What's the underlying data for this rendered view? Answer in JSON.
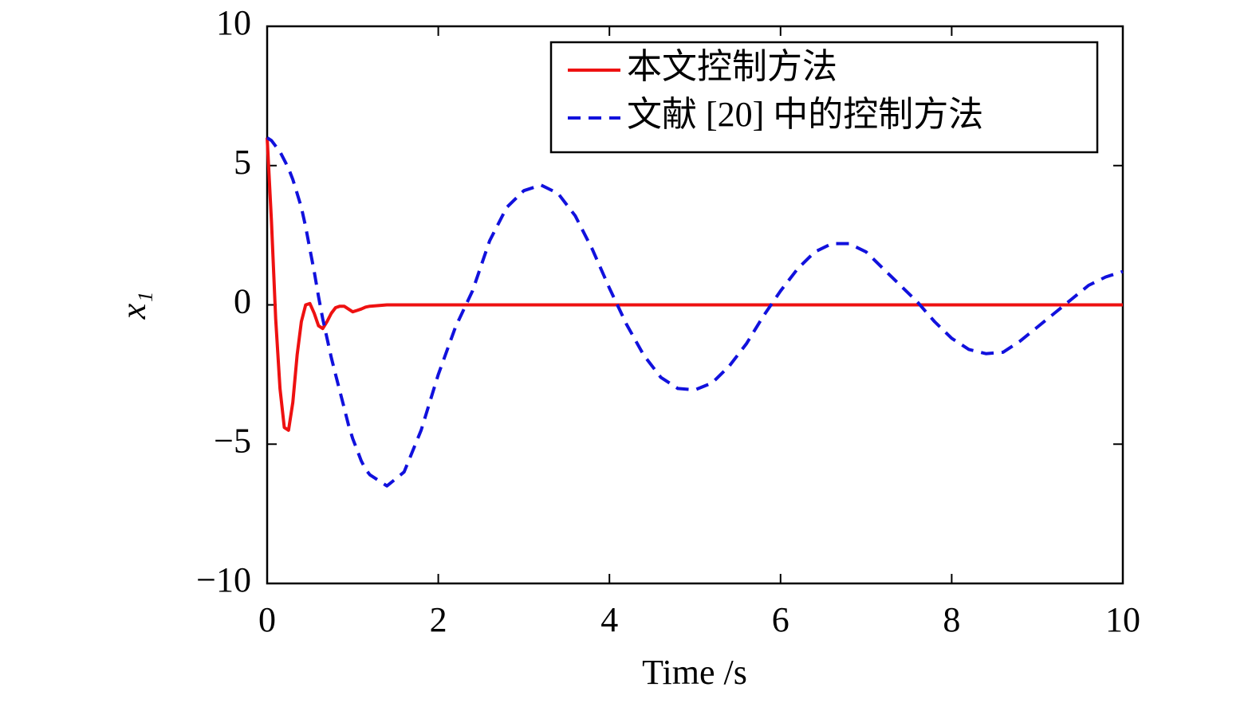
{
  "chart_data": {
    "type": "line",
    "x": [
      0,
      0.05,
      0.1,
      0.15,
      0.2,
      0.25,
      0.3,
      0.35,
      0.4,
      0.45,
      0.5,
      0.55,
      0.6,
      0.65,
      0.7,
      0.75,
      0.8,
      0.85,
      0.9,
      0.95,
      1.0,
      1.05,
      1.1,
      1.15,
      1.2,
      1.4,
      1.6,
      1.8,
      2.0,
      2.2,
      2.4,
      2.6,
      2.8,
      3.0,
      3.2,
      3.4,
      3.6,
      3.8,
      4.0,
      4.2,
      4.4,
      4.6,
      4.8,
      5.0,
      5.2,
      5.4,
      5.6,
      5.8,
      6.0,
      6.2,
      6.4,
      6.6,
      6.8,
      7.0,
      7.2,
      7.4,
      7.6,
      7.8,
      8.0,
      8.2,
      8.4,
      8.6,
      8.8,
      9.0,
      9.2,
      9.4,
      9.6,
      9.8,
      10
    ],
    "series": [
      {
        "name": "本文控制方法",
        "color": "#ee1111",
        "dash": false,
        "values": [
          6,
          3,
          -0.5,
          -3,
          -4.4,
          -4.5,
          -3.5,
          -1.8,
          -0.6,
          0,
          0.05,
          -0.3,
          -0.75,
          -0.85,
          -0.6,
          -0.3,
          -0.1,
          -0.05,
          -0.05,
          -0.15,
          -0.25,
          -0.2,
          -0.15,
          -0.08,
          -0.05,
          0,
          0,
          0,
          0,
          0,
          0,
          0,
          0,
          0,
          0,
          0,
          0,
          0,
          0,
          0,
          0,
          0,
          0,
          0,
          0,
          0,
          0,
          0,
          0,
          0,
          0,
          0,
          0,
          0,
          0,
          0,
          0,
          0,
          0,
          0,
          0,
          0,
          0,
          0,
          0,
          0,
          0,
          0,
          0
        ]
      },
      {
        "name": "文献 [20] 中的控制方法",
        "color": "#1111dd",
        "dash": true,
        "values": [
          6,
          5.9,
          5.7,
          5.5,
          5.2,
          4.9,
          4.5,
          4.0,
          3.5,
          2.8,
          2.0,
          1.2,
          0.3,
          -0.5,
          -1.2,
          -1.9,
          -2.5,
          -3.1,
          -3.7,
          -4.3,
          -4.8,
          -5.2,
          -5.6,
          -5.9,
          -6.1,
          -6.5,
          -6.0,
          -4.5,
          -2.5,
          -0.8,
          0.5,
          2.3,
          3.5,
          4.1,
          4.3,
          4.0,
          3.2,
          2.0,
          0.6,
          -0.7,
          -1.8,
          -2.6,
          -3.0,
          -3.05,
          -2.8,
          -2.2,
          -1.4,
          -0.4,
          0.5,
          1.3,
          1.9,
          2.2,
          2.2,
          1.9,
          1.3,
          0.7,
          0.1,
          -0.6,
          -1.2,
          -1.6,
          -1.75,
          -1.7,
          -1.3,
          -0.8,
          -0.3,
          0.2,
          0.7,
          1.0,
          1.2
        ]
      }
    ],
    "x_label": "Time /s",
    "y_label": "x₁",
    "xlim": [
      0,
      10
    ],
    "xticks": [
      0,
      2,
      4,
      6,
      8,
      10
    ],
    "ylim": [
      -10,
      10
    ],
    "yticks": [
      {
        "value": -10,
        "label": "−10"
      },
      {
        "value": -5,
        "label": "−5"
      },
      0,
      5,
      10
    ],
    "legend": "upper right"
  }
}
